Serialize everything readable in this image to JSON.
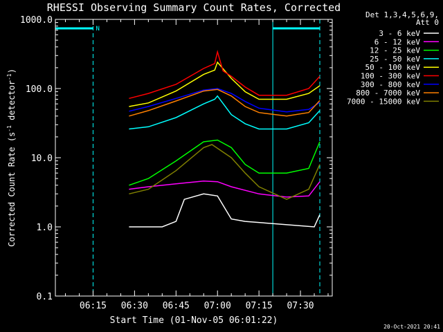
{
  "chart_data": {
    "type": "line",
    "title": "RHESSI Observing Summary Count Rates, Corrected",
    "xlabel": "Start Time (01-Nov-05 06:01:22)",
    "ylabel": "Corrected Count Rate (s",
    "ylabel_sup": "-1",
    "ylabel_tail": " detector",
    "ylabel_sup2": "-1",
    "ylabel_close": ")",
    "yscale": "log",
    "ylim": [
      0.1,
      1000
    ],
    "xlim": [
      "06:01:22",
      "07:41:30"
    ],
    "x_ticks": [
      "06:15",
      "06:30",
      "06:45",
      "07:00",
      "07:15",
      "07:30"
    ],
    "y_ticks": [
      "0.1",
      "1.0",
      "10.0",
      "100.0",
      "1000.0"
    ],
    "legend_title": [
      "Det 1,3,4,5,6,9,",
      "Att 0"
    ],
    "legend_position": "right",
    "series": [
      {
        "name": "3 - 6 keV",
        "color": "#ffffff",
        "points": [
          [
            "06:28",
            1.0
          ],
          [
            "06:40",
            1.0
          ],
          [
            "06:45",
            1.2
          ],
          [
            "06:48",
            2.5
          ],
          [
            "06:55",
            3.0
          ],
          [
            "07:00",
            2.8
          ],
          [
            "07:05",
            1.3
          ],
          [
            "07:10",
            1.2
          ],
          [
            "07:35",
            1.0
          ],
          [
            "07:37",
            1.5
          ]
        ]
      },
      {
        "name": "6 - 12 keV",
        "color": "#ff00ff",
        "points": [
          [
            "06:28",
            3.5
          ],
          [
            "06:35",
            3.8
          ],
          [
            "06:45",
            4.2
          ],
          [
            "06:55",
            4.6
          ],
          [
            "07:00",
            4.5
          ],
          [
            "07:05",
            3.8
          ],
          [
            "07:15",
            3.0
          ],
          [
            "07:25",
            2.7
          ],
          [
            "07:33",
            2.8
          ],
          [
            "07:37",
            4.5
          ]
        ]
      },
      {
        "name": "12 - 25 keV",
        "color": "#00ff00",
        "points": [
          [
            "06:28",
            4.0
          ],
          [
            "06:35",
            5.0
          ],
          [
            "06:45",
            9.0
          ],
          [
            "06:55",
            17.0
          ],
          [
            "07:00",
            18.0
          ],
          [
            "07:05",
            14.0
          ],
          [
            "07:10",
            8.0
          ],
          [
            "07:15",
            6.0
          ],
          [
            "07:25",
            6.0
          ],
          [
            "07:33",
            7.0
          ],
          [
            "07:37",
            17.0
          ]
        ]
      },
      {
        "name": "25 - 50 keV",
        "color": "#00ffff",
        "points": [
          [
            "06:28",
            26.0
          ],
          [
            "06:35",
            28.0
          ],
          [
            "06:45",
            38.0
          ],
          [
            "06:55",
            60.0
          ],
          [
            "06:59",
            70.0
          ],
          [
            "07:00",
            78.0
          ],
          [
            "07:05",
            42.0
          ],
          [
            "07:10",
            31.0
          ],
          [
            "07:15",
            26.0
          ],
          [
            "07:25",
            26.0
          ],
          [
            "07:33",
            32.0
          ],
          [
            "07:37",
            48.0
          ]
        ]
      },
      {
        "name": "50 - 100 keV",
        "color": "#ffff00",
        "points": [
          [
            "06:28",
            55.0
          ],
          [
            "06:35",
            62.0
          ],
          [
            "06:45",
            92.0
          ],
          [
            "06:55",
            160.0
          ],
          [
            "06:59",
            185.0
          ],
          [
            "07:00",
            240.0
          ],
          [
            "07:05",
            140.0
          ],
          [
            "07:10",
            90.0
          ],
          [
            "07:15",
            70.0
          ],
          [
            "07:25",
            70.0
          ],
          [
            "07:33",
            85.0
          ],
          [
            "07:37",
            110.0
          ]
        ]
      },
      {
        "name": "100 - 300 keV",
        "color": "#ff0000",
        "points": [
          [
            "06:28",
            72.0
          ],
          [
            "06:35",
            85.0
          ],
          [
            "06:45",
            115.0
          ],
          [
            "06:55",
            195.0
          ],
          [
            "06:59",
            230.0
          ],
          [
            "07:00",
            340.0
          ],
          [
            "07:02",
            180.0
          ],
          [
            "07:05",
            150.0
          ],
          [
            "07:10",
            105.0
          ],
          [
            "07:15",
            80.0
          ],
          [
            "07:25",
            80.0
          ],
          [
            "07:33",
            100.0
          ],
          [
            "07:37",
            150.0
          ]
        ]
      },
      {
        "name": "300 - 800 keV",
        "color": "#0000ff",
        "points": [
          [
            "06:28",
            47.0
          ],
          [
            "06:35",
            55.0
          ],
          [
            "06:45",
            72.0
          ],
          [
            "06:55",
            95.0
          ],
          [
            "07:00",
            100.0
          ],
          [
            "07:05",
            85.0
          ],
          [
            "07:10",
            65.0
          ],
          [
            "07:15",
            52.0
          ],
          [
            "07:25",
            46.0
          ],
          [
            "07:33",
            50.0
          ],
          [
            "07:37",
            63.0
          ]
        ]
      },
      {
        "name": "800 - 7000 keV",
        "color": "#ff8000",
        "points": [
          [
            "06:28",
            40.0
          ],
          [
            "06:35",
            48.0
          ],
          [
            "06:45",
            66.0
          ],
          [
            "06:55",
            92.0
          ],
          [
            "07:00",
            97.0
          ],
          [
            "07:05",
            78.0
          ],
          [
            "07:10",
            55.0
          ],
          [
            "07:15",
            45.0
          ],
          [
            "07:25",
            40.0
          ],
          [
            "07:33",
            45.0
          ],
          [
            "07:37",
            67.0
          ]
        ]
      },
      {
        "name": "7000 - 15000 keV",
        "color": "#808000",
        "points": [
          [
            "06:28",
            3.0
          ],
          [
            "06:35",
            3.5
          ],
          [
            "06:45",
            6.5
          ],
          [
            "06:55",
            14.0
          ],
          [
            "06:58",
            15.5
          ],
          [
            "07:05",
            10.0
          ],
          [
            "07:10",
            6.0
          ],
          [
            "07:15",
            3.8
          ],
          [
            "07:25",
            2.5
          ],
          [
            "07:33",
            3.5
          ],
          [
            "07:37",
            8.0
          ]
        ]
      }
    ],
    "annotations": {
      "night_label": "N",
      "color": "#00ffff",
      "bars": [
        [
          "06:01:22",
          "06:15"
        ],
        [
          "07:20",
          "07:37"
        ]
      ],
      "solid_vlines": [
        "06:01:22",
        "07:20"
      ],
      "dashed_vlines": [
        "06:15",
        "07:37"
      ]
    },
    "grid": false,
    "timestamp": "20-Oct-2021 20:41"
  }
}
